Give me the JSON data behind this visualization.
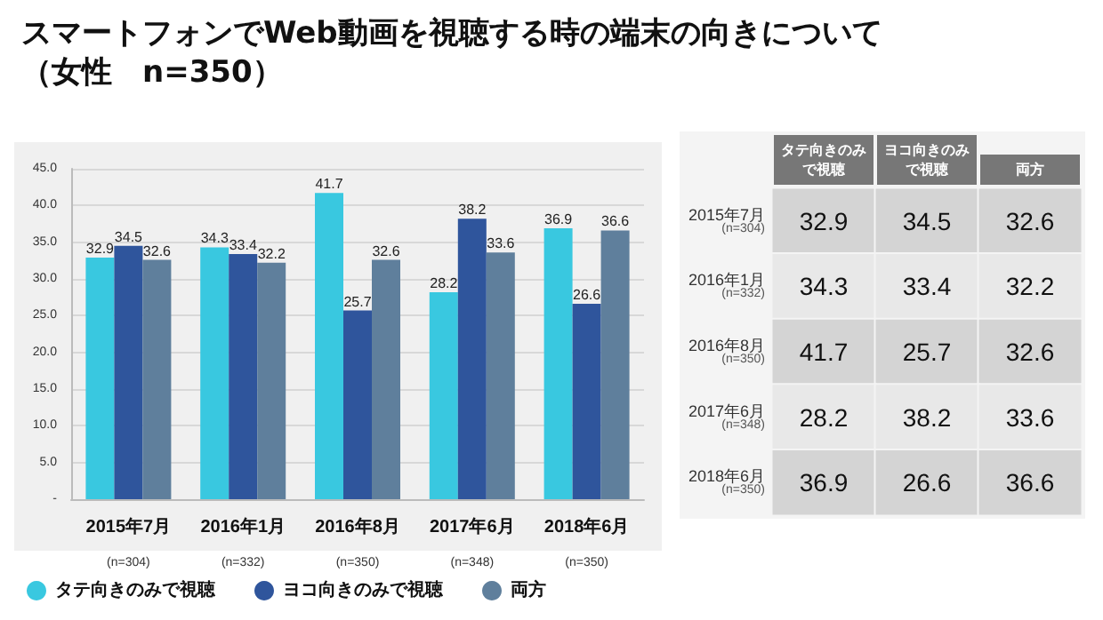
{
  "chart_data": [
    {
      "type": "bar",
      "title": "スマートフォンでWeb動画を視聴する時の端末の向きについて（女性　n=350）",
      "categories": [
        "2015年7月\n(n=304)",
        "2016年1月\n(n=332)",
        "2016年8月\n(n=350)",
        "2017年6月\n(n=348)",
        "2018年6月\n(n=350)"
      ],
      "series": [
        {
          "name": "タテ向きのみで視聴",
          "color": "#39c8e0",
          "values": [
            32.9,
            34.3,
            41.7,
            28.2,
            36.9
          ]
        },
        {
          "name": "ヨコ向きのみで視聴",
          "color": "#2f559c",
          "values": [
            34.5,
            33.4,
            25.7,
            38.2,
            26.6
          ]
        },
        {
          "name": "両方",
          "color": "#5f7f9c",
          "values": [
            32.6,
            32.2,
            32.6,
            33.6,
            36.6
          ]
        }
      ],
      "ylim": [
        0,
        45
      ],
      "yticks": [
        {
          "value": 0,
          "label": "-"
        },
        {
          "value": 5,
          "label": "5.0"
        },
        {
          "value": 10,
          "label": "10.0"
        },
        {
          "value": 15,
          "label": "15.0"
        },
        {
          "value": 20,
          "label": "20.0"
        },
        {
          "value": 25,
          "label": "25.0"
        },
        {
          "value": 30,
          "label": "30.0"
        },
        {
          "value": 35,
          "label": "35.0"
        },
        {
          "value": 40,
          "label": "40.0"
        },
        {
          "value": 45,
          "label": "45.0"
        }
      ],
      "grid": "y",
      "legend": "bottom left",
      "data_labels": true
    },
    {
      "type": "heatmap",
      "categories": [
        "タテ向きのみで視聴",
        "ヨコ向きのみで視聴",
        "両方"
      ],
      "y_categories": [
        "2015年7月\n(n=304)",
        "2016年1月\n(n=332)",
        "2016年8月\n(n=350)",
        "2017年6月\n(n=348)",
        "2018年6月\n(n=350)"
      ],
      "cells": [
        [
          32.9,
          34.5,
          32.6
        ],
        [
          34.3,
          33.4,
          32.2
        ],
        [
          41.7,
          25.7,
          32.6
        ],
        [
          28.2,
          38.2,
          33.6
        ],
        [
          36.9,
          26.6,
          36.6
        ]
      ],
      "data_labels": true
    }
  ]
}
